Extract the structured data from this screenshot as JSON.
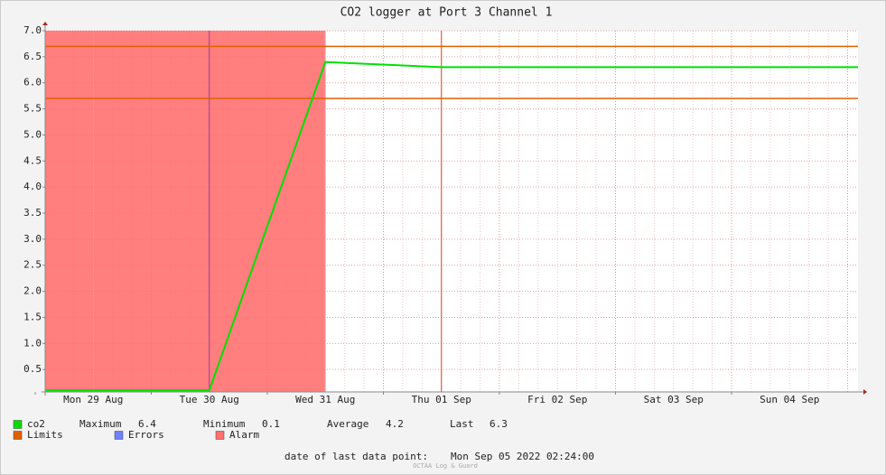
{
  "chart_data": {
    "type": "line",
    "title": "CO2 logger at Port 3 Channel 1",
    "categories": [
      "Mon 29 Aug",
      "Tue 30 Aug",
      "Wed 31 Aug",
      "Thu 01 Sep",
      "Fri 02 Sep",
      "Sat 03 Sep",
      "Sun 04 Sep"
    ],
    "series": [
      {
        "name": "co2",
        "color": "#00e000",
        "values": [
          0.1,
          0.1,
          6.4,
          6.3,
          6.3,
          6.3,
          6.3
        ]
      },
      {
        "name": "Alarm",
        "color": "#ff7070",
        "values": [
          7.0,
          7.0,
          7.0,
          null,
          null,
          null,
          null
        ]
      }
    ],
    "limits": {
      "name": "Limits",
      "color": "#e06000",
      "values": [
        6.7,
        5.7
      ]
    },
    "errors": {
      "name": "Errors",
      "color": "#7080ff"
    },
    "ylim": [
      0.07,
      7.0
    ],
    "yticks": [
      0.5,
      {
        "value": 1.0,
        "label": "1.0"
      },
      1.5,
      {
        "value": 2.0,
        "label": "2.0"
      },
      2.5,
      {
        "value": 3.0,
        "label": "3.0"
      },
      3.5,
      {
        "value": 4.0,
        "label": "4.0"
      },
      4.5,
      {
        "value": 5.0,
        "label": "5.0"
      },
      5.5,
      {
        "value": 6.0,
        "label": "6.0"
      },
      6.5,
      {
        "value": 7.0,
        "label": "7.0"
      }
    ],
    "grid": true,
    "stats": [
      {
        "label": "Maximum",
        "value": 6.4
      },
      {
        "label": "Minimum",
        "value": 0.1
      },
      {
        "label": "Average",
        "value": 4.2
      },
      {
        "label": "Last",
        "value": 6.3
      }
    ],
    "footer": {
      "label": "date of last data point:",
      "value": "Mon Sep 05 2022 02:24:00"
    },
    "watermark": "OCTAA Log & Guard"
  }
}
